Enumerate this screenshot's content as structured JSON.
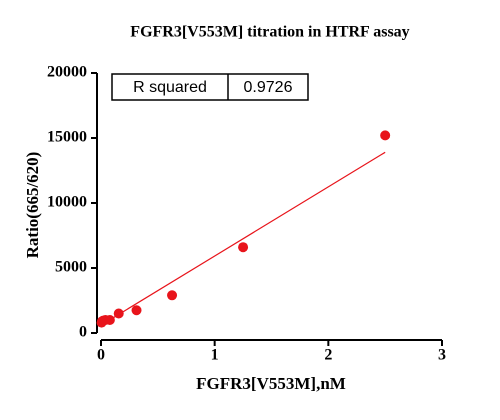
{
  "chart_data": {
    "type": "scatter",
    "title": "FGFR3[V553M] titration in HTRF assay",
    "x_label": "FGFR3[V553M],nM",
    "y_label": "Ratio(665/620)",
    "points": {
      "color": "#e8141b",
      "x": [
        2.5,
        1.25,
        0.625,
        0.3125,
        0.156,
        0.078,
        0.039,
        0.0195,
        0.0098,
        0.0049
      ],
      "values": [
        15200,
        6600,
        2900,
        1750,
        1500,
        1000,
        1000,
        950,
        900,
        800
      ]
    },
    "fit_line": {
      "color": "#e8141b",
      "x": [
        0,
        2.5
      ],
      "values": [
        600,
        13900
      ]
    },
    "stats_table": {
      "label": "R squared",
      "value": "0.9726"
    },
    "xlim": [
      0,
      3
    ],
    "xticks": [
      0,
      1,
      2,
      3
    ],
    "ylim": [
      0,
      20000
    ],
    "yticks": [
      0,
      5000,
      10000,
      15000,
      20000
    ]
  }
}
